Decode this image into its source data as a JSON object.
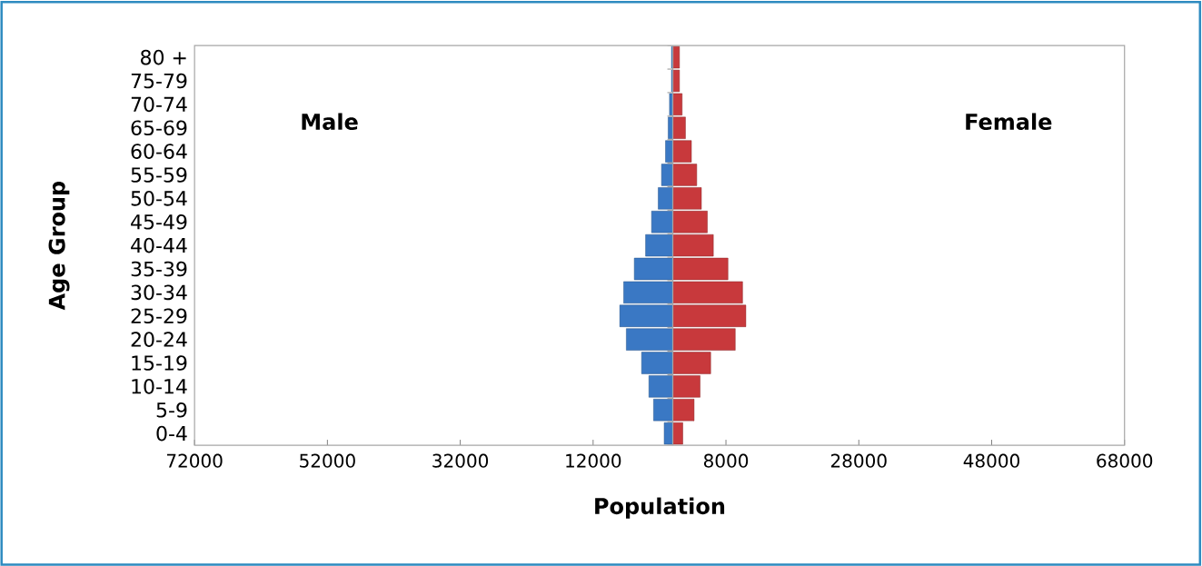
{
  "chart_data": {
    "type": "bar",
    "orientation": "horizontal",
    "stacked": true,
    "xlabel": "Population",
    "ylabel": "Age Group",
    "annotations": [
      "Male",
      "Female"
    ],
    "categories": [
      "80 +",
      "75-79",
      "70-74",
      "65-69",
      "60-64",
      "55-59",
      "50-54",
      "45-49",
      "40-44",
      "35-39",
      "30-34",
      "25-29",
      "20-24",
      "15-19",
      "10-14",
      "5-9",
      "0-4"
    ],
    "series": [
      {
        "color": "#3a78c4",
        "values": [
          -200,
          -200,
          -500,
          -700,
          -1100,
          -1700,
          -2200,
          -3200,
          -4100,
          -5800,
          -7400,
          -8000,
          -7000,
          -4700,
          -3600,
          -2900,
          -1300
        ]
      },
      {
        "color": "#c8393c",
        "values": [
          1000,
          1000,
          1400,
          1900,
          2800,
          3600,
          4300,
          5200,
          6100,
          8300,
          10500,
          11000,
          9400,
          5700,
          4100,
          3200,
          1500
        ]
      }
    ],
    "xlim": [
      -72000,
      68000
    ],
    "xticks": [
      {
        "value": -72000,
        "label": "72000"
      },
      {
        "value": -52000,
        "label": "52000"
      },
      {
        "value": -32000,
        "label": "32000"
      },
      {
        "value": -12000,
        "label": "12000"
      },
      8000,
      28000,
      48000,
      68000
    ],
    "grid": false
  }
}
